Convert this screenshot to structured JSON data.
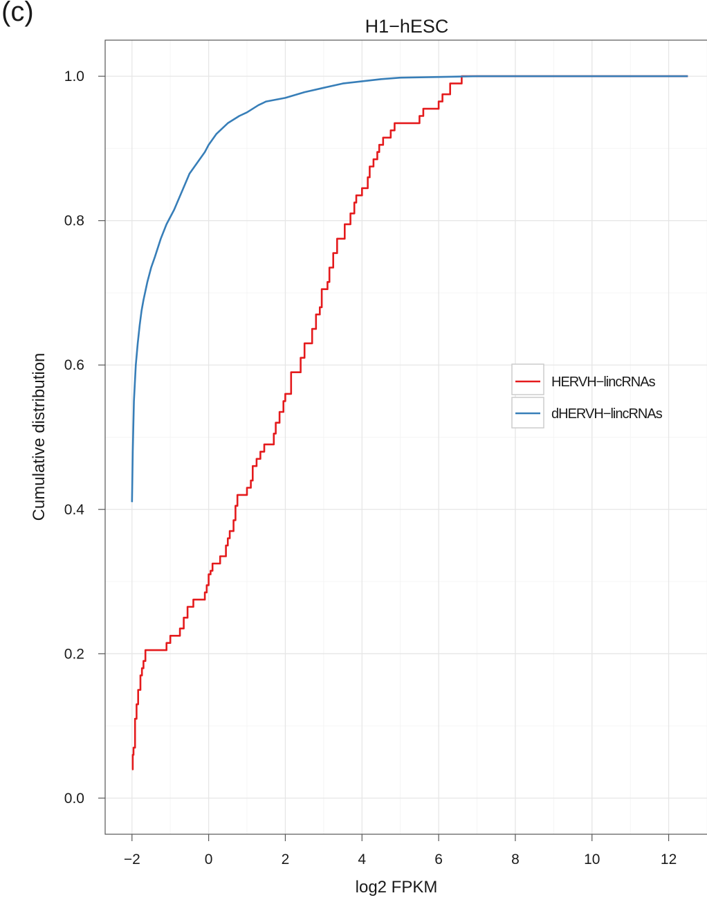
{
  "panel_label": "(c)",
  "chart_data": {
    "type": "line",
    "title": "H1−hESC",
    "xlabel": "log2 FPKM",
    "ylabel": "Cumulative distribution",
    "xlim": [
      -2.7,
      13.0
    ],
    "ylim": [
      -0.05,
      1.05
    ],
    "x_ticks": [
      -2,
      0,
      2,
      4,
      6,
      8,
      10,
      12
    ],
    "x_tick_labels": [
      "−2",
      "0",
      "2",
      "4",
      "6",
      "8",
      "10",
      "12"
    ],
    "y_ticks": [
      0.0,
      0.2,
      0.4,
      0.6,
      0.8,
      1.0
    ],
    "y_tick_labels": [
      "0.0",
      "0.2",
      "0.4",
      "0.6",
      "0.8",
      "1.0"
    ],
    "grid": true,
    "legend_position": "right",
    "series": [
      {
        "name": "HERVH−lincRNAs",
        "color": "#e41a1c",
        "step": true,
        "x": [
          -2.0,
          -1.98,
          -1.96,
          -1.92,
          -1.88,
          -1.84,
          -1.78,
          -1.74,
          -1.7,
          -1.65,
          -1.1,
          -1.0,
          -0.75,
          -0.65,
          -0.55,
          -0.4,
          -0.1,
          -0.05,
          0.0,
          0.05,
          0.1,
          0.3,
          0.45,
          0.5,
          0.55,
          0.65,
          0.7,
          0.75,
          1.0,
          1.1,
          1.15,
          1.25,
          1.35,
          1.45,
          1.7,
          1.75,
          1.85,
          1.95,
          2.0,
          2.15,
          2.4,
          2.5,
          2.7,
          2.8,
          2.9,
          2.95,
          3.1,
          3.15,
          3.25,
          3.35,
          3.55,
          3.7,
          3.8,
          3.85,
          4.0,
          4.15,
          4.2,
          4.3,
          4.4,
          4.45,
          4.55,
          4.75,
          4.85,
          5.5,
          5.6,
          6.0,
          6.1,
          6.3,
          6.6,
          6.9,
          7.1,
          7.2,
          12.5
        ],
        "y": [
          0.04,
          0.06,
          0.07,
          0.11,
          0.13,
          0.15,
          0.17,
          0.18,
          0.19,
          0.205,
          0.215,
          0.225,
          0.235,
          0.25,
          0.265,
          0.275,
          0.285,
          0.295,
          0.31,
          0.315,
          0.325,
          0.335,
          0.35,
          0.36,
          0.37,
          0.385,
          0.405,
          0.42,
          0.43,
          0.44,
          0.46,
          0.47,
          0.48,
          0.49,
          0.505,
          0.52,
          0.535,
          0.55,
          0.56,
          0.59,
          0.61,
          0.63,
          0.65,
          0.67,
          0.68,
          0.705,
          0.715,
          0.735,
          0.755,
          0.775,
          0.795,
          0.81,
          0.825,
          0.835,
          0.845,
          0.86,
          0.875,
          0.885,
          0.895,
          0.905,
          0.915,
          0.925,
          0.935,
          0.945,
          0.955,
          0.965,
          0.975,
          0.99,
          1.0,
          1.0,
          1.0,
          1.0,
          1.0
        ]
      },
      {
        "name": "dHERVH−lincRNAs",
        "color": "#377eb8",
        "step": false,
        "x": [
          -2.0,
          -1.98,
          -1.95,
          -1.9,
          -1.85,
          -1.8,
          -1.75,
          -1.7,
          -1.6,
          -1.5,
          -1.4,
          -1.25,
          -1.1,
          -0.9,
          -0.7,
          -0.5,
          -0.3,
          -0.1,
          0.0,
          0.2,
          0.5,
          0.8,
          1.0,
          1.3,
          1.5,
          2.0,
          2.5,
          3.0,
          3.5,
          4.0,
          4.5,
          5.0,
          6.0,
          7.0,
          8.0,
          10.0,
          12.5
        ],
        "y": [
          0.41,
          0.48,
          0.55,
          0.6,
          0.63,
          0.655,
          0.675,
          0.69,
          0.715,
          0.735,
          0.75,
          0.775,
          0.795,
          0.815,
          0.84,
          0.865,
          0.88,
          0.895,
          0.905,
          0.92,
          0.935,
          0.945,
          0.95,
          0.96,
          0.965,
          0.97,
          0.978,
          0.984,
          0.99,
          0.993,
          0.996,
          0.998,
          0.999,
          1.0,
          1.0,
          1.0,
          1.0
        ]
      }
    ]
  }
}
